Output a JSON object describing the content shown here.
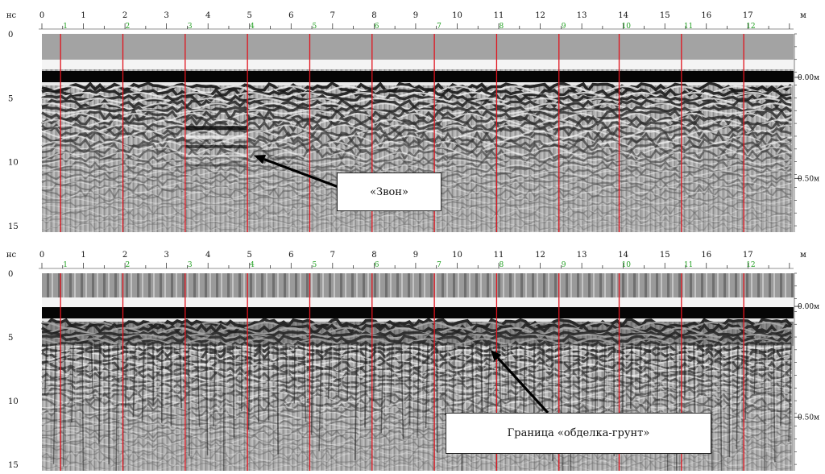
{
  "chart_data": [
    {
      "type": "radargram",
      "panel": 1,
      "x_unit": "м",
      "y_unit": "нс",
      "x_ticks": [
        "0",
        "1",
        "2",
        "3",
        "4",
        "5",
        "6",
        "7",
        "8",
        "9",
        "10",
        "11",
        "12",
        "13",
        "14",
        "15",
        "16",
        "17"
      ],
      "x_range_m": [
        0,
        18.1
      ],
      "y_ticks": [
        "0",
        "5",
        "10",
        "15"
      ],
      "y_range_ns": [
        0,
        15.5
      ],
      "markers": [
        {
          "label": "1",
          "x_m": 0.45
        },
        {
          "label": "2",
          "x_m": 1.95
        },
        {
          "label": "3",
          "x_m": 3.45
        },
        {
          "label": "4",
          "x_m": 4.95
        },
        {
          "label": "5",
          "x_m": 6.45
        },
        {
          "label": "6",
          "x_m": 7.95
        },
        {
          "label": "7",
          "x_m": 9.45
        },
        {
          "label": "8",
          "x_m": 10.95
        },
        {
          "label": "9",
          "x_m": 12.45
        },
        {
          "label": "10",
          "x_m": 13.9
        },
        {
          "label": "11",
          "x_m": 15.4
        },
        {
          "label": "12",
          "x_m": 16.9
        }
      ],
      "depth_labels": [
        {
          "label": "0.00м",
          "t_ns": 3.4
        },
        {
          "label": "0.50м",
          "t_ns": 11.3
        }
      ],
      "annotation": {
        "text": "«Звон»",
        "arrow_to": {
          "x_m": 5.1,
          "t_ns": 9.5
        }
      }
    },
    {
      "type": "radargram",
      "panel": 2,
      "x_unit": "м",
      "y_unit": "нс",
      "x_ticks": [
        "0",
        "1",
        "2",
        "3",
        "4",
        "5",
        "6",
        "7",
        "8",
        "9",
        "10",
        "11",
        "12",
        "13",
        "14",
        "15",
        "16",
        "17"
      ],
      "x_range_m": [
        0,
        18.1
      ],
      "y_ticks": [
        "0",
        "5",
        "10",
        "15"
      ],
      "y_range_ns": [
        0,
        15.5
      ],
      "markers": [
        {
          "label": "1",
          "x_m": 0.45
        },
        {
          "label": "2",
          "x_m": 1.95
        },
        {
          "label": "3",
          "x_m": 3.45
        },
        {
          "label": "4",
          "x_m": 4.95
        },
        {
          "label": "5",
          "x_m": 6.45
        },
        {
          "label": "6",
          "x_m": 7.95
        },
        {
          "label": "7",
          "x_m": 9.45
        },
        {
          "label": "8",
          "x_m": 10.95
        },
        {
          "label": "9",
          "x_m": 12.45
        },
        {
          "label": "10",
          "x_m": 13.9
        },
        {
          "label": "11",
          "x_m": 15.4
        },
        {
          "label": "12",
          "x_m": 16.9
        }
      ],
      "depth_labels": [
        {
          "label": "0.00м",
          "t_ns": 2.6
        },
        {
          "label": "0.50м",
          "t_ns": 11.3
        }
      ],
      "annotation": {
        "text": "Граница «обделка-грунт»",
        "arrow_to": {
          "x_m": 10.8,
          "t_ns": 6.0
        }
      }
    }
  ],
  "colors": {
    "marker_line": "#e0141e",
    "marker_label": "#22a022",
    "background": "#ffffff"
  }
}
